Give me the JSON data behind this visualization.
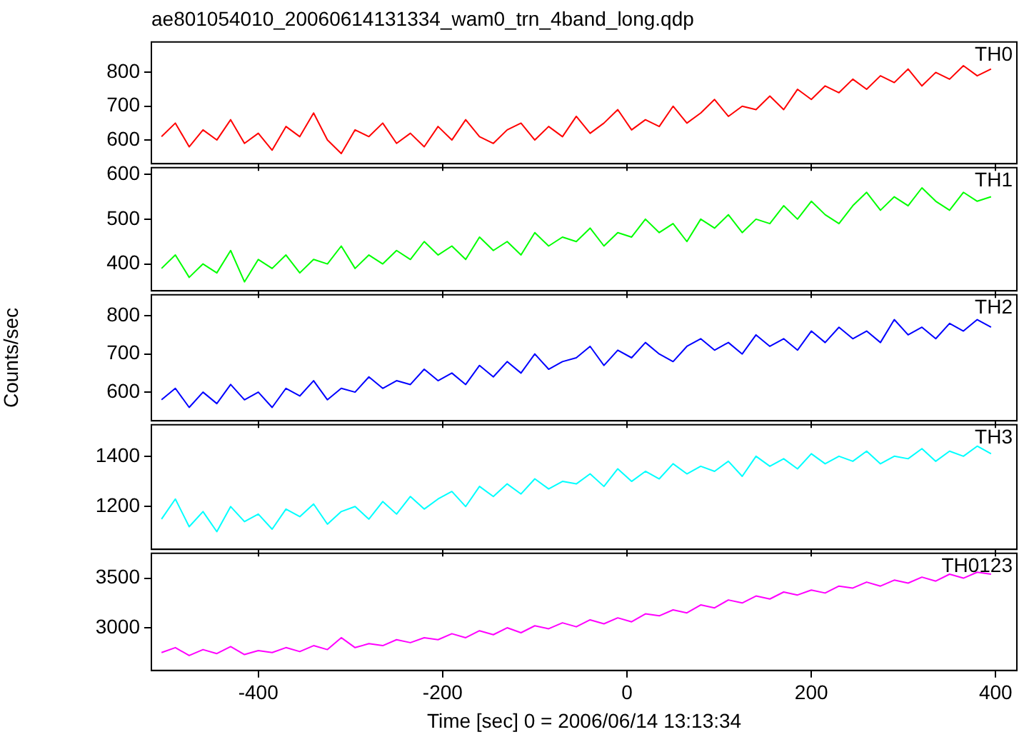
{
  "chart_data": [
    {
      "type": "line",
      "title": "ae801054010_20060614131334_wam0_trn_4band_long.qdp",
      "tick_labels": "y",
      "legend": false,
      "x": [
        -505,
        -490,
        -475,
        -460,
        -445,
        -430,
        -415,
        -400,
        -385,
        -370,
        -355,
        -340,
        -325,
        -310,
        -295,
        -280,
        -265,
        -250,
        -235,
        -220,
        -205,
        -190,
        -175,
        -160,
        -145,
        -130,
        -115,
        -100,
        -85,
        -70,
        -55,
        -40,
        -25,
        -10,
        5,
        20,
        35,
        50,
        65,
        80,
        95,
        110,
        125,
        140,
        155,
        170,
        185,
        200,
        215,
        230,
        245,
        260,
        275,
        290,
        305,
        320,
        335,
        350,
        365,
        380,
        395
      ],
      "xlim": [
        -516,
        423
      ],
      "xticks": [
        -400,
        -200,
        0,
        200,
        400
      ],
      "ylim": [
        530,
        890
      ],
      "yticks": [
        600,
        700,
        800
      ],
      "series": [
        {
          "name": "TH0",
          "color": "#ff0000",
          "values": [
            610,
            650,
            580,
            630,
            600,
            660,
            590,
            620,
            570,
            640,
            610,
            680,
            600,
            560,
            630,
            610,
            650,
            590,
            620,
            580,
            640,
            600,
            660,
            610,
            590,
            630,
            650,
            600,
            640,
            610,
            670,
            620,
            650,
            690,
            630,
            660,
            640,
            700,
            650,
            680,
            720,
            670,
            700,
            690,
            730,
            690,
            750,
            720,
            760,
            740,
            780,
            750,
            790,
            770,
            810,
            760,
            800,
            780,
            820,
            790,
            810
          ]
        }
      ]
    },
    {
      "type": "line",
      "tick_labels": "y",
      "legend": false,
      "x": [
        -505,
        -490,
        -475,
        -460,
        -445,
        -430,
        -415,
        -400,
        -385,
        -370,
        -355,
        -340,
        -325,
        -310,
        -295,
        -280,
        -265,
        -250,
        -235,
        -220,
        -205,
        -190,
        -175,
        -160,
        -145,
        -130,
        -115,
        -100,
        -85,
        -70,
        -55,
        -40,
        -25,
        -10,
        5,
        20,
        35,
        50,
        65,
        80,
        95,
        110,
        125,
        140,
        155,
        170,
        185,
        200,
        215,
        230,
        245,
        260,
        275,
        290,
        305,
        320,
        335,
        350,
        365,
        380,
        395
      ],
      "xlim": [
        -516,
        423
      ],
      "xticks": [
        -400,
        -200,
        0,
        200,
        400
      ],
      "ylim": [
        340,
        615
      ],
      "yticks": [
        400,
        500,
        600
      ],
      "series": [
        {
          "name": "TH1",
          "color": "#00ff00",
          "values": [
            390,
            420,
            370,
            400,
            380,
            430,
            360,
            410,
            390,
            420,
            380,
            410,
            400,
            440,
            390,
            420,
            400,
            430,
            410,
            450,
            420,
            440,
            410,
            460,
            430,
            450,
            420,
            470,
            440,
            460,
            450,
            480,
            440,
            470,
            460,
            500,
            470,
            490,
            450,
            500,
            480,
            510,
            470,
            500,
            490,
            530,
            500,
            540,
            510,
            490,
            530,
            560,
            520,
            550,
            530,
            570,
            540,
            520,
            560,
            540,
            550
          ]
        }
      ]
    },
    {
      "type": "line",
      "ylabel": "Counts/sec",
      "tick_labels": "y",
      "legend": false,
      "x": [
        -505,
        -490,
        -475,
        -460,
        -445,
        -430,
        -415,
        -400,
        -385,
        -370,
        -355,
        -340,
        -325,
        -310,
        -295,
        -280,
        -265,
        -250,
        -235,
        -220,
        -205,
        -190,
        -175,
        -160,
        -145,
        -130,
        -115,
        -100,
        -85,
        -70,
        -55,
        -40,
        -25,
        -10,
        5,
        20,
        35,
        50,
        65,
        80,
        95,
        110,
        125,
        140,
        155,
        170,
        185,
        200,
        215,
        230,
        245,
        260,
        275,
        290,
        305,
        320,
        335,
        350,
        365,
        380,
        395
      ],
      "xlim": [
        -516,
        423
      ],
      "xticks": [
        -400,
        -200,
        0,
        200,
        400
      ],
      "ylim": [
        525,
        855
      ],
      "yticks": [
        600,
        700,
        800
      ],
      "series": [
        {
          "name": "TH2",
          "color": "#0000ff",
          "values": [
            580,
            610,
            560,
            600,
            570,
            620,
            580,
            600,
            560,
            610,
            590,
            630,
            580,
            610,
            600,
            640,
            610,
            630,
            620,
            660,
            630,
            650,
            620,
            670,
            640,
            680,
            650,
            700,
            660,
            680,
            690,
            720,
            670,
            710,
            690,
            730,
            700,
            680,
            720,
            740,
            710,
            730,
            700,
            750,
            720,
            740,
            710,
            760,
            730,
            770,
            740,
            760,
            730,
            790,
            750,
            770,
            740,
            780,
            760,
            790,
            770
          ]
        }
      ]
    },
    {
      "type": "line",
      "tick_labels": "y",
      "legend": false,
      "x": [
        -505,
        -490,
        -475,
        -460,
        -445,
        -430,
        -415,
        -400,
        -385,
        -370,
        -355,
        -340,
        -325,
        -310,
        -295,
        -280,
        -265,
        -250,
        -235,
        -220,
        -205,
        -190,
        -175,
        -160,
        -145,
        -130,
        -115,
        -100,
        -85,
        -70,
        -55,
        -40,
        -25,
        -10,
        5,
        20,
        35,
        50,
        65,
        80,
        95,
        110,
        125,
        140,
        155,
        170,
        185,
        200,
        215,
        230,
        245,
        260,
        275,
        290,
        305,
        320,
        335,
        350,
        365,
        380,
        395
      ],
      "xlim": [
        -516,
        423
      ],
      "xticks": [
        -400,
        -200,
        0,
        200,
        400
      ],
      "ylim": [
        1030,
        1525
      ],
      "yticks": [
        1200,
        1400
      ],
      "series": [
        {
          "name": "TH3",
          "color": "#00ffff",
          "values": [
            1150,
            1230,
            1120,
            1180,
            1100,
            1200,
            1140,
            1170,
            1110,
            1190,
            1160,
            1210,
            1130,
            1180,
            1200,
            1150,
            1220,
            1170,
            1240,
            1190,
            1230,
            1260,
            1200,
            1280,
            1240,
            1290,
            1250,
            1310,
            1270,
            1300,
            1290,
            1330,
            1280,
            1350,
            1300,
            1340,
            1310,
            1370,
            1330,
            1360,
            1340,
            1380,
            1320,
            1400,
            1360,
            1390,
            1350,
            1410,
            1370,
            1400,
            1380,
            1420,
            1370,
            1400,
            1390,
            1430,
            1380,
            1420,
            1400,
            1440,
            1410
          ]
        }
      ]
    },
    {
      "type": "line",
      "xlabel": "Time [sec] 0 = 2006/06/14 13:13:34",
      "legend": false,
      "x": [
        -505,
        -490,
        -475,
        -460,
        -445,
        -430,
        -415,
        -400,
        -385,
        -370,
        -355,
        -340,
        -325,
        -310,
        -295,
        -280,
        -265,
        -250,
        -235,
        -220,
        -205,
        -190,
        -175,
        -160,
        -145,
        -130,
        -115,
        -100,
        -85,
        -70,
        -55,
        -40,
        -25,
        -10,
        5,
        20,
        35,
        50,
        65,
        80,
        95,
        110,
        125,
        140,
        155,
        170,
        185,
        200,
        215,
        230,
        245,
        260,
        275,
        290,
        305,
        320,
        335,
        350,
        365,
        380,
        395
      ],
      "xlim": [
        -516,
        423
      ],
      "xticks": [
        -400,
        -200,
        0,
        200,
        400
      ],
      "ylim": [
        2570,
        3750
      ],
      "yticks": [
        3000,
        3500
      ],
      "series": [
        {
          "name": "TH0123",
          "color": "#ff00ff",
          "values": [
            2750,
            2800,
            2720,
            2780,
            2740,
            2810,
            2730,
            2770,
            2750,
            2800,
            2760,
            2820,
            2780,
            2900,
            2800,
            2840,
            2820,
            2880,
            2850,
            2900,
            2880,
            2940,
            2900,
            2970,
            2930,
            3000,
            2950,
            3020,
            2990,
            3050,
            3010,
            3080,
            3040,
            3100,
            3060,
            3140,
            3120,
            3180,
            3150,
            3230,
            3200,
            3280,
            3250,
            3320,
            3290,
            3360,
            3330,
            3380,
            3350,
            3420,
            3400,
            3460,
            3420,
            3480,
            3450,
            3510,
            3470,
            3540,
            3500,
            3560,
            3540
          ]
        }
      ]
    }
  ]
}
